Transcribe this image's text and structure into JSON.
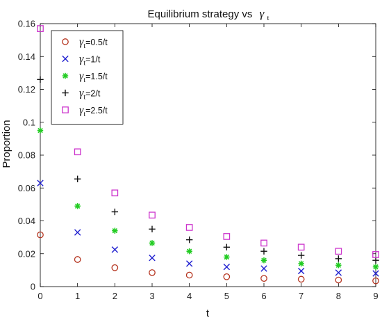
{
  "chart_data": {
    "type": "scatter",
    "title": "Equilibrium strategy  vs",
    "title_symbol": "γ",
    "title_symbol_sub": "t",
    "xlabel": "t",
    "ylabel": "Proportion",
    "xlim": [
      0,
      9
    ],
    "ylim": [
      0,
      0.16
    ],
    "x_ticks": [
      "0",
      "1",
      "2",
      "3",
      "4",
      "5",
      "6",
      "7",
      "8",
      "9"
    ],
    "y_ticks": [
      "0",
      "0.02",
      "0.04",
      "0.06",
      "0.08",
      "0.1",
      "0.12",
      "0.14",
      "0.16"
    ],
    "grid": false,
    "legend_position": "top-left",
    "x": [
      0,
      1,
      2,
      3,
      4,
      5,
      6,
      7,
      8,
      9
    ],
    "series": [
      {
        "name_prefix": "γ",
        "name_sub": "t",
        "name_suffix": "=0.5/t",
        "marker": "circle",
        "color": "#b5341f",
        "values": [
          0.0315,
          0.0165,
          0.0115,
          0.0085,
          0.007,
          0.006,
          0.005,
          0.0045,
          0.004,
          0.0035
        ]
      },
      {
        "name_prefix": "γ",
        "name_sub": "t",
        "name_suffix": "=1/t",
        "marker": "x",
        "color": "#2020d0",
        "values": [
          0.063,
          0.033,
          0.0225,
          0.0175,
          0.014,
          0.012,
          0.011,
          0.0095,
          0.0085,
          0.008
        ]
      },
      {
        "name_prefix": "γ",
        "name_sub": "t",
        "name_suffix": "=1.5/t",
        "marker": "star",
        "color": "#22cc22",
        "values": [
          0.095,
          0.049,
          0.034,
          0.0265,
          0.0215,
          0.018,
          0.016,
          0.014,
          0.013,
          0.012
        ]
      },
      {
        "name_prefix": "γ",
        "name_sub": "t",
        "name_suffix": "=2/t",
        "marker": "plus",
        "color": "#111111",
        "values": [
          0.126,
          0.0655,
          0.0455,
          0.035,
          0.0285,
          0.024,
          0.0215,
          0.019,
          0.017,
          0.016
        ]
      },
      {
        "name_prefix": "γ",
        "name_sub": "t",
        "name_suffix": "=2.5/t",
        "marker": "square",
        "color": "#cc33cc",
        "values": [
          0.157,
          0.082,
          0.057,
          0.0435,
          0.036,
          0.0305,
          0.0265,
          0.024,
          0.0215,
          0.0195
        ]
      }
    ]
  }
}
